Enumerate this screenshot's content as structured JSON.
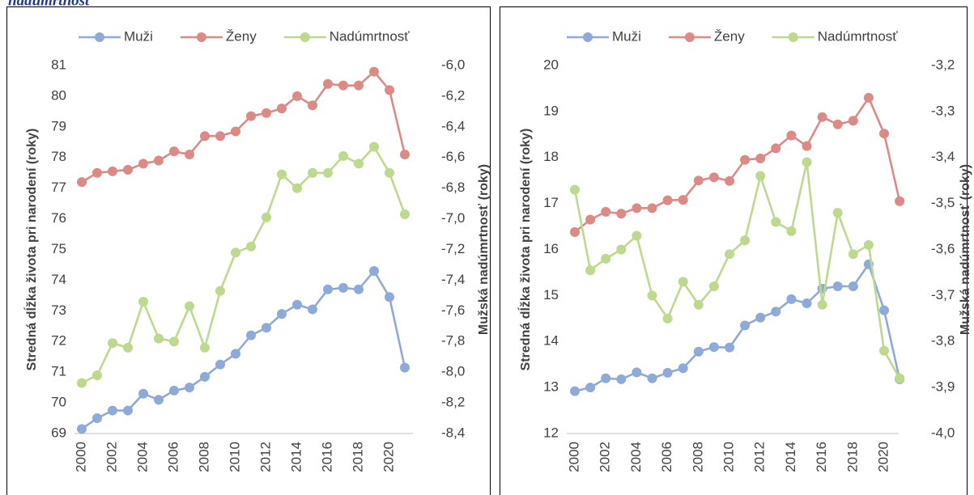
{
  "caption": "nadúmrtnosť",
  "chart_data": [
    {
      "type": "line",
      "categories": [
        "2000",
        null,
        "2002",
        null,
        "2004",
        null,
        "2006",
        null,
        "2008",
        null,
        "2010",
        null,
        "2012",
        null,
        "2014",
        null,
        "2016",
        null,
        "2018",
        null,
        "2020",
        null
      ],
      "y_label": "Stredná dĺžka života pri narodení (roky)",
      "y2_label": "Mužská nadúmrtnosť (roky)",
      "ylim": [
        69,
        81
      ],
      "yticks": [
        69,
        70,
        71,
        72,
        73,
        74,
        75,
        76,
        77,
        78,
        79,
        80,
        81
      ],
      "y2lim": [
        -8.4,
        -6.0
      ],
      "y2ticks": [
        {
          "value": -8.4,
          "label": "-8,4"
        },
        {
          "value": -8.2,
          "label": "-8,2"
        },
        {
          "value": -8.0,
          "label": "-8,0"
        },
        {
          "value": -7.8,
          "label": "-7,8"
        },
        {
          "value": -7.6,
          "label": "-7,6"
        },
        {
          "value": -7.4,
          "label": "-7,4"
        },
        {
          "value": -7.2,
          "label": "-7,2"
        },
        {
          "value": -7.0,
          "label": "-7,0"
        },
        {
          "value": -6.8,
          "label": "-6,8"
        },
        {
          "value": -6.6,
          "label": "-6,6"
        },
        {
          "value": -6.4,
          "label": "-6,4"
        },
        {
          "value": -6.2,
          "label": "-6,2"
        },
        {
          "value": -6.0,
          "label": "-6,0"
        }
      ],
      "grid": false,
      "legend": "top",
      "series": [
        {
          "name": "Muži",
          "color": "#8eaad8",
          "values": [
            69.15,
            69.5,
            69.75,
            69.75,
            70.3,
            70.1,
            70.4,
            70.5,
            70.85,
            71.25,
            71.6,
            72.2,
            72.45,
            72.9,
            73.2,
            73.05,
            73.7,
            73.75,
            73.7,
            74.3,
            73.45,
            71.15
          ]
        },
        {
          "name": "Ženy",
          "color": "#dc8a86",
          "values": [
            77.2,
            77.5,
            77.55,
            77.6,
            77.8,
            77.9,
            78.2,
            78.1,
            78.7,
            78.7,
            78.85,
            79.35,
            79.45,
            79.6,
            80.0,
            79.7,
            80.4,
            80.35,
            80.35,
            80.8,
            80.2,
            78.1
          ]
        },
        {
          "name": "Nadúmrtnosť",
          "color": "#bcd98e",
          "axis": "y2",
          "values": [
            -8.07,
            -8.02,
            -7.81,
            -7.84,
            -7.54,
            -7.78,
            -7.8,
            -7.57,
            -7.84,
            -7.47,
            -7.22,
            -7.18,
            -6.99,
            -6.71,
            -6.8,
            -6.7,
            -6.7,
            -6.59,
            -6.64,
            -6.53,
            -6.7,
            -6.97
          ]
        }
      ]
    },
    {
      "type": "line",
      "categories": [
        "2000",
        null,
        "2002",
        null,
        "2004",
        null,
        "2006",
        null,
        "2008",
        null,
        "2010",
        null,
        "2012",
        null,
        "2014",
        null,
        "2016",
        null,
        "2018",
        null,
        "2020",
        null
      ],
      "y_label": "Stredná dĺžka života pri narodení (roky)",
      "y2_label": "Mužská nadúmrtnosť (roky)",
      "ylim": [
        12,
        20
      ],
      "yticks": [
        12,
        13,
        14,
        15,
        16,
        17,
        18,
        19,
        20
      ],
      "y2lim": [
        -4.0,
        -3.2
      ],
      "y2ticks": [
        {
          "value": -4.0,
          "label": "-4,0"
        },
        {
          "value": -3.9,
          "label": "-3,9"
        },
        {
          "value": -3.8,
          "label": "-3,8"
        },
        {
          "value": -3.7,
          "label": "-3,7"
        },
        {
          "value": -3.6,
          "label": "-3,6"
        },
        {
          "value": -3.5,
          "label": "-3,5"
        },
        {
          "value": -3.4,
          "label": "-3,4"
        },
        {
          "value": -3.3,
          "label": "-3,3"
        },
        {
          "value": -3.2,
          "label": "-3,2"
        }
      ],
      "grid": false,
      "legend": "top",
      "series": [
        {
          "name": "Muži",
          "color": "#8eaad8",
          "values": [
            12.92,
            13.0,
            13.2,
            13.18,
            13.33,
            13.2,
            13.32,
            13.42,
            13.78,
            13.88,
            13.87,
            14.35,
            14.52,
            14.65,
            14.92,
            14.83,
            15.15,
            15.2,
            15.2,
            15.68,
            14.68,
            13.18
          ]
        },
        {
          "name": "Ženy",
          "color": "#dc8a86",
          "values": [
            16.38,
            16.65,
            16.82,
            16.78,
            16.9,
            16.9,
            17.07,
            17.08,
            17.5,
            17.57,
            17.49,
            17.95,
            17.98,
            18.2,
            18.48,
            18.25,
            18.88,
            18.72,
            18.8,
            19.3,
            18.52,
            17.05
          ]
        },
        {
          "name": "Nadúmrtnosť",
          "color": "#bcd98e",
          "axis": "y2",
          "values": [
            -3.47,
            -3.645,
            -3.62,
            -3.6,
            -3.57,
            -3.7,
            -3.75,
            -3.67,
            -3.72,
            -3.68,
            -3.61,
            -3.58,
            -3.44,
            -3.54,
            -3.56,
            -3.41,
            -3.72,
            -3.52,
            -3.61,
            -3.59,
            -3.82,
            -3.88
          ]
        }
      ]
    }
  ]
}
